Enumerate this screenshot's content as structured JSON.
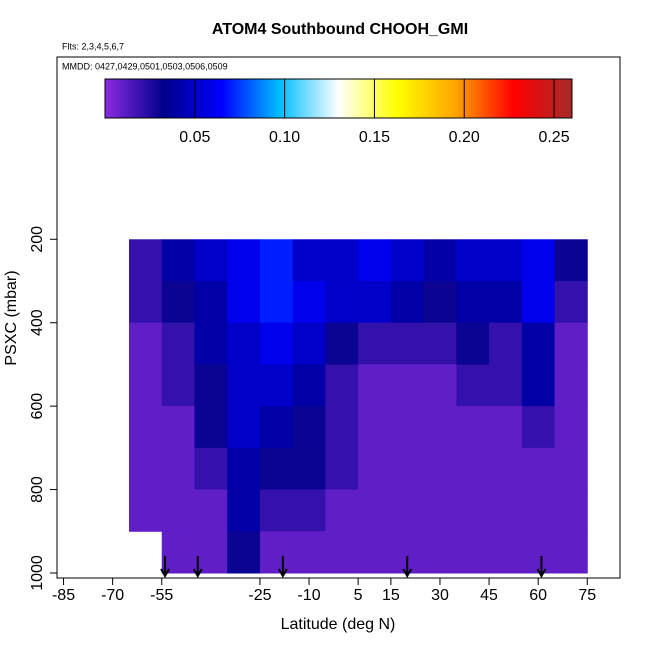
{
  "chart_data": {
    "type": "heatmap",
    "title": "ATOM4 Southbound CHOOH_GMI",
    "subtitle": "Flts: 2,3,4,5,6,7",
    "annotation": "MMDD: 0427,0429,0501,0503,0506,0509",
    "x_label": "Latitude (deg N)",
    "y_label": "PSXC (mbar)",
    "xlim": [
      -87,
      85
    ],
    "xticks": [
      -85,
      -70,
      -55,
      -25,
      -10,
      5,
      15,
      30,
      45,
      60,
      75
    ],
    "ylim": [
      1012,
      -237
    ],
    "yticks": [
      200,
      400,
      600,
      800,
      1000
    ],
    "x_edges": [
      -65,
      -55,
      -45,
      -35,
      -25,
      -15,
      -5,
      5,
      15,
      25,
      35,
      45,
      55,
      65,
      75
    ],
    "y_edges": [
      200,
      300,
      400,
      500,
      600,
      700,
      800,
      900,
      1000
    ],
    "values": [
      [
        0.02,
        0.04,
        0.05,
        0.06,
        0.07,
        0.05,
        0.05,
        0.06,
        0.05,
        0.04,
        0.05,
        0.05,
        0.06,
        0.03
      ],
      [
        0.02,
        0.03,
        0.04,
        0.06,
        0.07,
        0.06,
        0.05,
        0.05,
        0.04,
        0.03,
        0.04,
        0.04,
        0.06,
        0.02
      ],
      [
        0.01,
        0.02,
        0.04,
        0.05,
        0.06,
        0.05,
        0.03,
        0.02,
        0.02,
        0.02,
        0.03,
        0.02,
        0.04,
        0.01
      ],
      [
        0.01,
        0.02,
        0.03,
        0.05,
        0.05,
        0.04,
        0.02,
        0.01,
        0.01,
        0.01,
        0.02,
        0.02,
        0.04,
        0.01
      ],
      [
        0.01,
        0.01,
        0.03,
        0.05,
        0.04,
        0.03,
        0.02,
        0.01,
        0.01,
        0.01,
        0.01,
        0.01,
        0.02,
        0.01
      ],
      [
        0.01,
        0.01,
        0.02,
        0.04,
        0.03,
        0.03,
        0.02,
        0.01,
        0.01,
        0.01,
        0.01,
        0.01,
        0.01,
        0.01
      ],
      [
        0.01,
        0.01,
        0.01,
        0.04,
        0.02,
        0.02,
        0.01,
        0.01,
        0.01,
        0.01,
        0.01,
        0.01,
        0.01,
        0.01
      ],
      [
        null,
        0.01,
        0.01,
        0.03,
        0.01,
        0.01,
        0.01,
        0.01,
        0.01,
        0.01,
        0.01,
        0.01,
        0.01,
        0.01
      ]
    ],
    "clim": [
      0,
      0.26
    ],
    "cticks": [
      {
        "value": 0.05,
        "label": "0.05"
      },
      {
        "value": 0.1,
        "label": "0.10"
      },
      {
        "value": 0.15,
        "label": "0.15"
      },
      {
        "value": 0.2,
        "label": "0.20"
      },
      {
        "value": 0.25,
        "label": "0.25"
      }
    ],
    "colors": [
      "#8a2be2",
      "#00008b",
      "#0000ff",
      "#00bfff",
      "#ffffff",
      "#ffff00",
      "#ffa500",
      "#ff0000",
      "#a52a2a"
    ],
    "arrows": [
      -54,
      -44,
      -18,
      20,
      61
    ]
  }
}
